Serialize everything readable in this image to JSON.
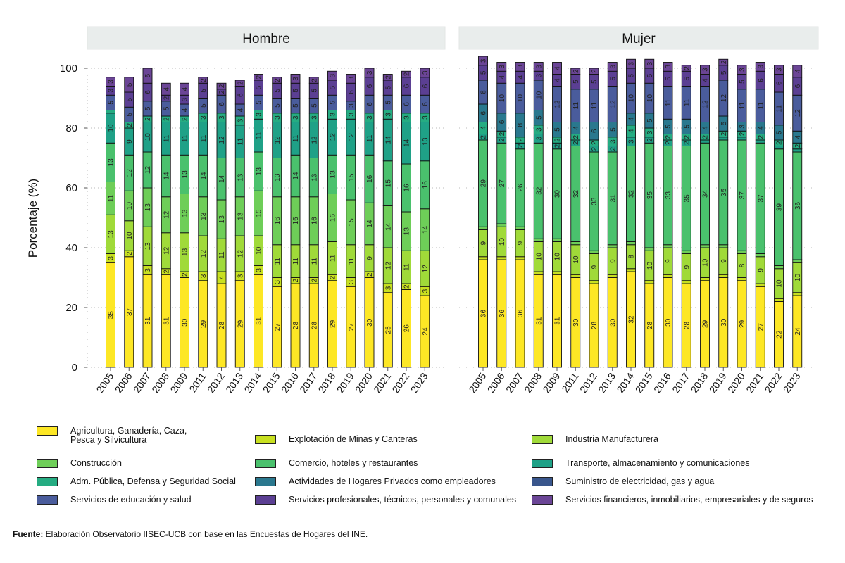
{
  "chart_data": {
    "type": "bar",
    "stacked": true,
    "ylabel": "Porcentaje (%)",
    "ylim": [
      0,
      100
    ],
    "yticks": [
      0,
      20,
      40,
      60,
      80,
      100
    ],
    "categories": [
      "2005",
      "2006",
      "2007",
      "2008",
      "2009",
      "2011",
      "2012",
      "2013",
      "2014",
      "2015",
      "2016",
      "2017",
      "2018",
      "2019",
      "2020",
      "2021",
      "2022",
      "2023"
    ],
    "series_names": [
      "Agricultura, Ganadería, Caza,\nPesca y Silvicultura",
      "Explotación de Minas y Canteras",
      "Industria Manufacturera",
      "Construcción",
      "Comercio, hoteles y restaurantes",
      "Transporte, almacenamiento y comunicaciones",
      "Adm. Pública, Defensa y Seguridad Social",
      "Actividades de Hogares Privados como empleadores",
      "Suministro de electricidad, gas y agua",
      "Servicios de educación y salud",
      "Servicios profesionales, técnicos, personales y comunales",
      "Servicios financieros, inmobiliarios, empresariales y de seguros"
    ],
    "series_colors": [
      "#FDE725",
      "#C8E020",
      "#A0DA39",
      "#6ECE58",
      "#4AC16D",
      "#1FA187",
      "#25AC82",
      "#2A788E",
      "#39568C",
      "#4A5C9C",
      "#5B3F93",
      "#6B4596"
    ],
    "legend_order": [
      0,
      1,
      2,
      3,
      4,
      5,
      6,
      7,
      8,
      9,
      10,
      11
    ],
    "panels": [
      {
        "title": "Hombre",
        "values": [
          [
            35,
            3,
            13,
            11,
            13,
            10,
            1,
            0,
            0,
            5,
            3,
            3
          ],
          [
            37,
            2,
            10,
            10,
            12,
            9,
            2,
            0,
            0,
            5,
            5,
            5
          ],
          [
            31,
            3,
            13,
            13,
            12,
            10,
            2,
            0,
            0,
            5,
            6,
            5
          ],
          [
            31,
            2,
            12,
            12,
            14,
            11,
            2,
            0,
            0,
            5,
            2,
            4
          ],
          [
            30,
            2,
            13,
            13,
            13,
            11,
            2,
            0,
            0,
            4,
            3,
            4
          ],
          [
            29,
            3,
            12,
            13,
            14,
            11,
            3,
            0,
            0,
            5,
            5,
            2
          ],
          [
            28,
            4,
            11,
            13,
            14,
            12,
            3,
            0,
            0,
            6,
            2,
            2
          ],
          [
            29,
            3,
            12,
            13,
            13,
            11,
            3,
            0,
            0,
            4,
            6,
            2
          ],
          [
            31,
            3,
            10,
            15,
            13,
            11,
            3,
            0,
            0,
            5,
            5,
            2
          ],
          [
            27,
            3,
            11,
            16,
            13,
            12,
            3,
            0,
            0,
            5,
            5,
            2
          ],
          [
            28,
            2,
            11,
            16,
            14,
            11,
            3,
            0,
            0,
            5,
            5,
            3
          ],
          [
            28,
            2,
            11,
            16,
            13,
            12,
            3,
            0,
            0,
            5,
            5,
            2
          ],
          [
            29,
            2,
            11,
            16,
            13,
            12,
            3,
            0,
            0,
            5,
            5,
            3
          ],
          [
            27,
            3,
            11,
            15,
            15,
            12,
            3,
            0,
            0,
            3,
            6,
            3
          ],
          [
            30,
            2,
            9,
            14,
            16,
            11,
            3,
            0,
            0,
            6,
            6,
            3
          ],
          [
            25,
            3,
            12,
            14,
            15,
            14,
            3,
            0,
            0,
            5,
            5,
            2
          ],
          [
            26,
            2,
            11,
            13,
            16,
            14,
            3,
            0,
            0,
            6,
            6,
            2
          ],
          [
            24,
            3,
            12,
            14,
            16,
            13,
            3,
            0,
            0,
            6,
            6,
            3
          ]
        ]
      },
      {
        "title": "Mujer",
        "values": [
          [
            36,
            1,
            9,
            1,
            29,
            2,
            4,
            6,
            0,
            8,
            5,
            3
          ],
          [
            36,
            1,
            10,
            1,
            27,
            2,
            2,
            6,
            0,
            10,
            4,
            3
          ],
          [
            36,
            1,
            9,
            1,
            26,
            2,
            2,
            8,
            0,
            10,
            4,
            3
          ],
          [
            31,
            1,
            10,
            1,
            32,
            3,
            3,
            5,
            0,
            10,
            3,
            3
          ],
          [
            31,
            1,
            10,
            1,
            30,
            2,
            2,
            5,
            0,
            12,
            4,
            4
          ],
          [
            30,
            1,
            10,
            1,
            32,
            2,
            2,
            4,
            0,
            11,
            5,
            2
          ],
          [
            28,
            1,
            9,
            1,
            33,
            2,
            2,
            6,
            0,
            11,
            5,
            2
          ],
          [
            30,
            1,
            9,
            1,
            31,
            2,
            3,
            5,
            0,
            12,
            5,
            3
          ],
          [
            32,
            1,
            8,
            1,
            32,
            3,
            4,
            4,
            0,
            10,
            5,
            3
          ],
          [
            28,
            1,
            10,
            1,
            35,
            2,
            3,
            5,
            0,
            10,
            5,
            3
          ],
          [
            30,
            1,
            9,
            1,
            33,
            2,
            2,
            5,
            0,
            11,
            5,
            3
          ],
          [
            28,
            1,
            9,
            1,
            35,
            2,
            2,
            5,
            0,
            11,
            5,
            2
          ],
          [
            29,
            1,
            10,
            1,
            34,
            1,
            2,
            4,
            0,
            12,
            4,
            3
          ],
          [
            30,
            1,
            9,
            1,
            35,
            1,
            2,
            5,
            0,
            12,
            5,
            2
          ],
          [
            29,
            1,
            8,
            1,
            37,
            1,
            2,
            3,
            0,
            11,
            5,
            3
          ],
          [
            27,
            1,
            9,
            1,
            37,
            1,
            2,
            4,
            0,
            11,
            6,
            3
          ],
          [
            22,
            1,
            10,
            1,
            39,
            1,
            2,
            5,
            0,
            11,
            6,
            3
          ],
          [
            24,
            1,
            10,
            1,
            36,
            1,
            2,
            4,
            0,
            12,
            6,
            4
          ]
        ]
      }
    ]
  },
  "source": {
    "label": "Fuente:",
    "text": " Elaboración Observatorio IISEC-UCB con base en las Encuestas de Hogares del INE."
  }
}
